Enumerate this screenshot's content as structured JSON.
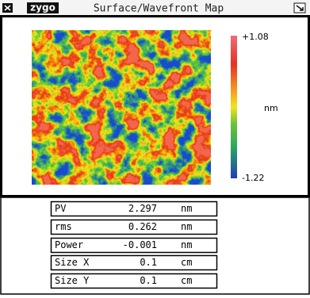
{
  "header": {
    "logo": "zygo",
    "title": "Surface/Wavefront Map"
  },
  "colorbar": {
    "max_label": "+1.08",
    "min_label": "-1.22",
    "unit": "nm"
  },
  "table": {
    "rows": [
      [
        "PV",
        "2.297",
        "nm"
      ],
      [
        "rms",
        "0.262",
        "nm"
      ],
      [
        "Power",
        "-0.001",
        "nm"
      ],
      [
        "Size X",
        "0.1",
        "cm"
      ],
      [
        "Size Y",
        "0.1",
        "cm"
      ]
    ]
  }
}
